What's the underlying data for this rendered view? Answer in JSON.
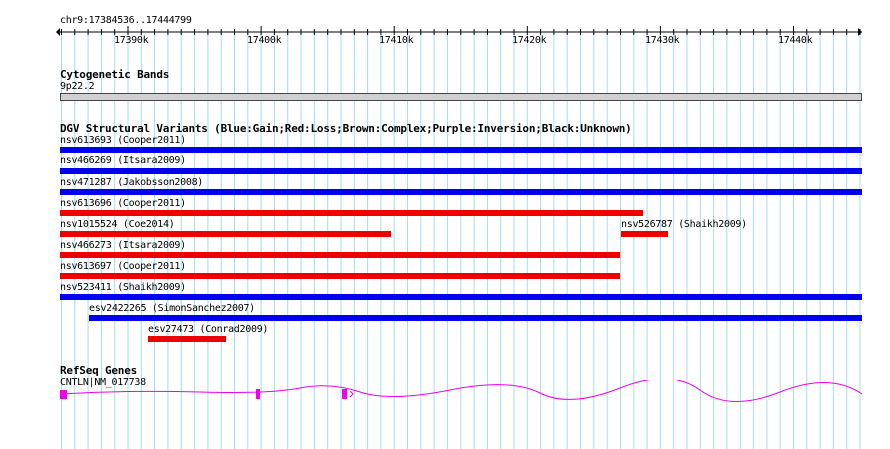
{
  "ruler": {
    "position": "chr9:17384536..17444799",
    "ticks": [
      "17390k",
      "17400k",
      "17410k",
      "17420k",
      "17430k",
      "17440k"
    ]
  },
  "cytoband": {
    "title": "Cytogenetic Bands",
    "band": "9p22.2"
  },
  "dgv": {
    "title": "DGV Structural Variants (Blue:Gain;Red:Loss;Brown:Complex;Purple:Inversion;Black:Unknown)",
    "variants": [
      {
        "label": "nsv613693 (Cooper2011)",
        "type": "Gain"
      },
      {
        "label": "nsv466269 (Itsara2009)",
        "type": "Gain"
      },
      {
        "label": "nsv471287 (Jakobsson2008)",
        "type": "Gain"
      },
      {
        "label": "nsv613696 (Cooper2011)",
        "type": "Loss"
      },
      {
        "label": "nsv1015524 (Coe2014)",
        "type": "Loss"
      },
      {
        "label": "nsv526787 (Shaikh2009)",
        "type": "Loss"
      },
      {
        "label": "nsv466273 (Itsara2009)",
        "type": "Loss"
      },
      {
        "label": "nsv613697 (Cooper2011)",
        "type": "Loss"
      },
      {
        "label": "nsv523411 (Shaikh2009)",
        "type": "Gain"
      },
      {
        "label": "esv2422265 (SimonSanchez2007)",
        "type": "Gain"
      },
      {
        "label": "esv27473 (Conrad2009)",
        "type": "Loss"
      }
    ]
  },
  "refseq": {
    "title": "RefSeq Genes",
    "gene": "CNTLN|NM_017738"
  },
  "colors": {
    "gain": "#0000ee",
    "loss": "#ee0000",
    "gene": "#ee00ee",
    "grid": "#a8dcec"
  }
}
